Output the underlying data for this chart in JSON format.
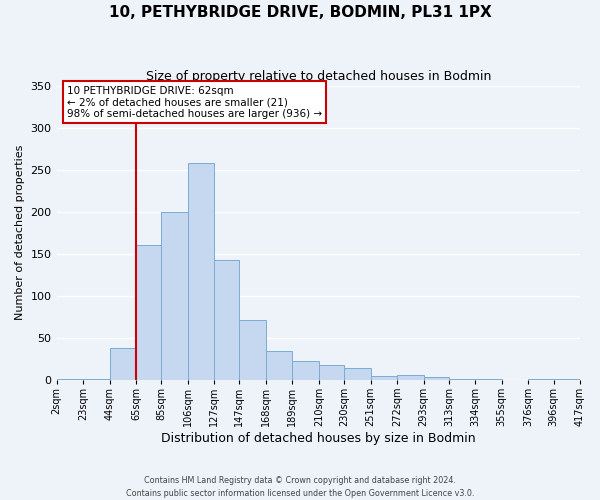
{
  "title": "10, PETHYBRIDGE DRIVE, BODMIN, PL31 1PX",
  "subtitle": "Size of property relative to detached houses in Bodmin",
  "xlabel": "Distribution of detached houses by size in Bodmin",
  "ylabel": "Number of detached properties",
  "footer_line1": "Contains HM Land Registry data © Crown copyright and database right 2024.",
  "footer_line2": "Contains public sector information licensed under the Open Government Licence v3.0.",
  "bin_edges": [
    2,
    23,
    44,
    65,
    85,
    106,
    127,
    147,
    168,
    189,
    210,
    230,
    251,
    272,
    293,
    313,
    334,
    355,
    376,
    396,
    417
  ],
  "bin_labels": [
    "2sqm",
    "23sqm",
    "44sqm",
    "65sqm",
    "85sqm",
    "106sqm",
    "127sqm",
    "147sqm",
    "168sqm",
    "189sqm",
    "210sqm",
    "230sqm",
    "251sqm",
    "272sqm",
    "293sqm",
    "313sqm",
    "334sqm",
    "355sqm",
    "376sqm",
    "396sqm",
    "417sqm"
  ],
  "counts": [
    1,
    1,
    38,
    160,
    200,
    258,
    143,
    71,
    35,
    22,
    18,
    14,
    5,
    6,
    4,
    1,
    1,
    0,
    1,
    1
  ],
  "bar_color": "#c5d8f0",
  "bar_edge_color": "#7aadd4",
  "background_color": "#eef3fa",
  "grid_color": "#ffffff",
  "vline_x": 65,
  "annotation_text": "10 PETHYBRIDGE DRIVE: 62sqm\n← 2% of detached houses are smaller (21)\n98% of semi-detached houses are larger (936) →",
  "annotation_box_color": "#ffffff",
  "annotation_box_edge_color": "#cc0000",
  "vline_color": "#cc0000",
  "ylim": [
    0,
    350
  ],
  "yticks": [
    0,
    50,
    100,
    150,
    200,
    250,
    300,
    350
  ]
}
